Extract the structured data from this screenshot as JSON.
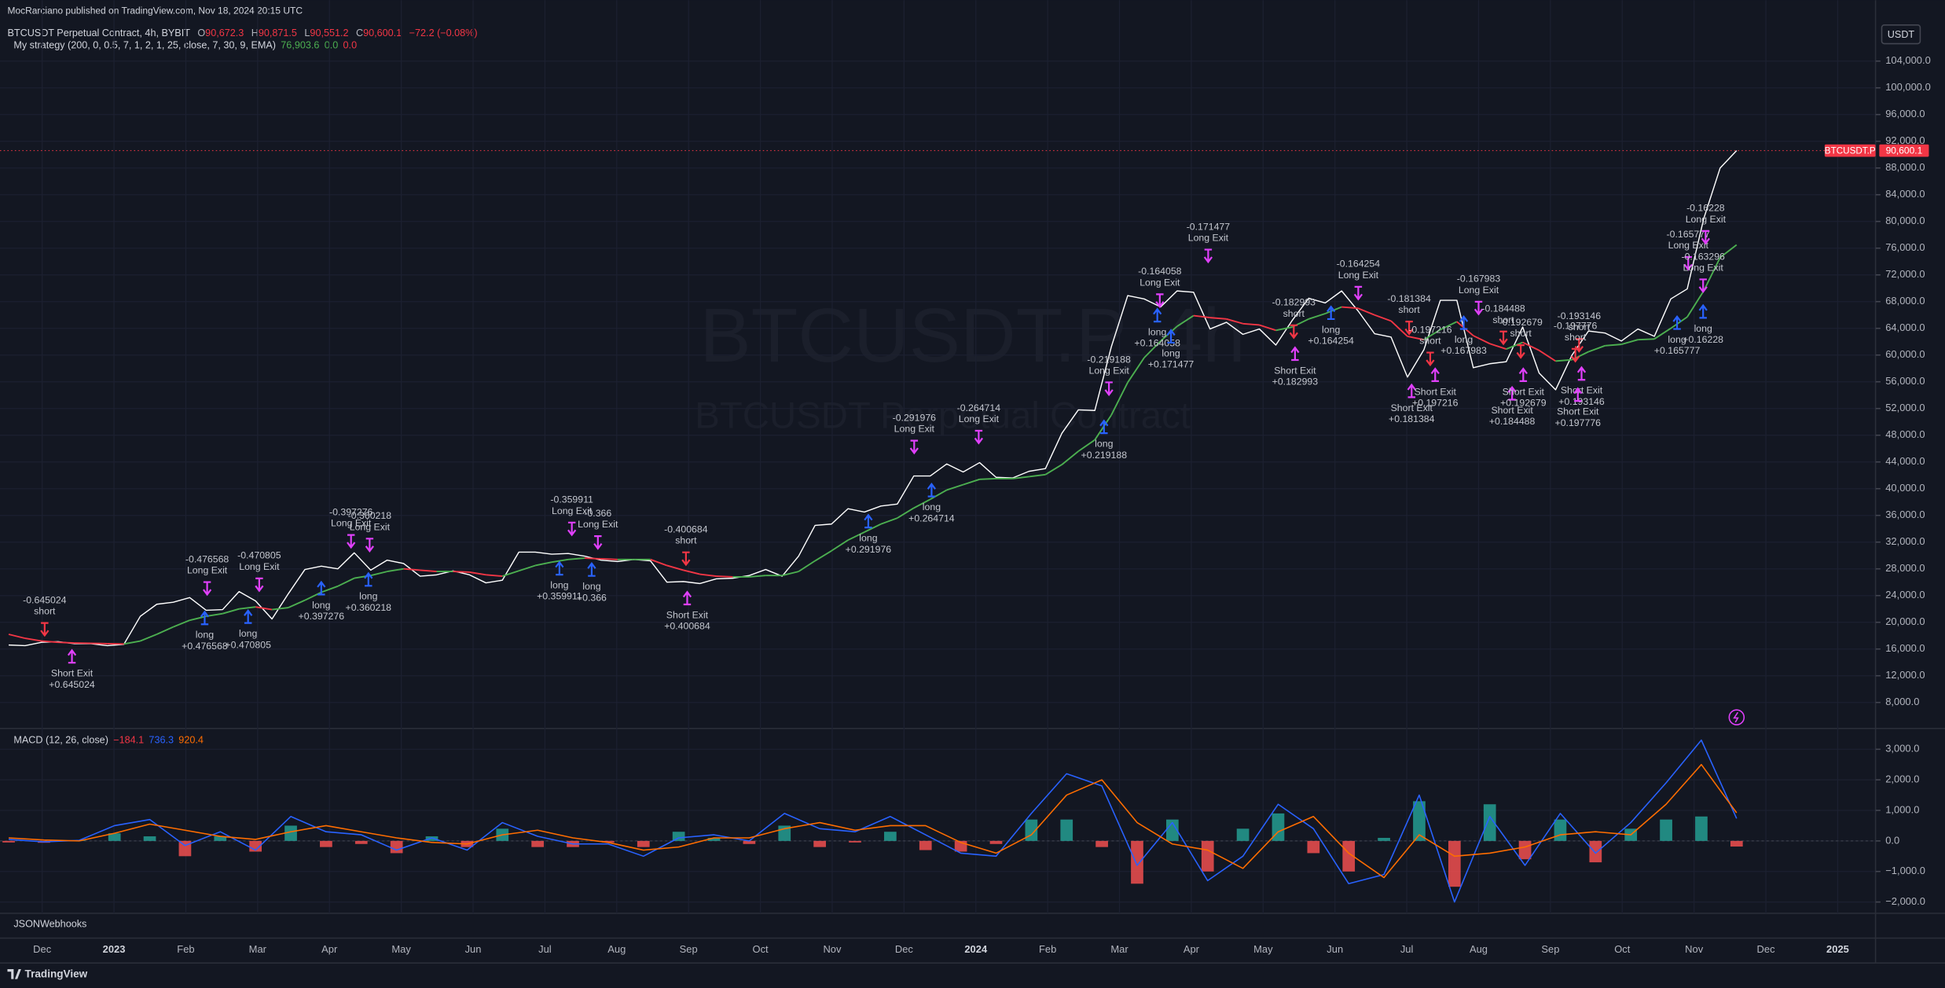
{
  "header": {
    "publisher": "MocRarciano published on TradingView.com, Nov 18, 2024 20:15 UTC",
    "symbol": "BTCUSDT Perpetual Contract, 4h, BYBIT",
    "ohlc": [
      {
        "key": "O",
        "value": "90,672.3"
      },
      {
        "key": "H",
        "value": "90,871.5"
      },
      {
        "key": "L",
        "value": "90,551.2"
      },
      {
        "key": "C",
        "value": "90,600.1"
      }
    ],
    "change": "−72.2 (−0.08%)",
    "strategy": "My strategy (200, 0, 0.5, 7, 1, 2, 1, 25, close, 7, 30, 9, EMA)",
    "strategy_values": [
      {
        "text": "76,903.6",
        "color": "#4caf50"
      },
      {
        "text": "0.0",
        "color": "#4caf50"
      },
      {
        "text": "0.0",
        "color": "#f23645"
      }
    ],
    "currency": "USDT"
  },
  "watermark": {
    "symbol": "BTCUSDT.P, 4h",
    "description": "BTCUSDT Perpetual Contract"
  },
  "time_axis": [
    "Dec",
    "2023",
    "Feb",
    "Mar",
    "Apr",
    "May",
    "Jun",
    "Jul",
    "Aug",
    "Sep",
    "Oct",
    "Nov",
    "Dec",
    "2024",
    "Feb",
    "Mar",
    "Apr",
    "May",
    "Jun",
    "Jul",
    "Aug",
    "Sep",
    "Oct",
    "Nov",
    "Dec",
    "2025"
  ],
  "chart_data": [
    {
      "type": "line",
      "ylim": [
        4290,
        110140
      ],
      "yticks": [
        {
          "value": 8000,
          "label": "8,000.0"
        },
        {
          "value": 12000,
          "label": "12,000.0"
        },
        {
          "value": 16000,
          "label": "16,000.0"
        },
        {
          "value": 20000,
          "label": "20,000.0"
        },
        {
          "value": 24000,
          "label": "24,000.0"
        },
        {
          "value": 28000,
          "label": "28,000.0"
        },
        {
          "value": 32000,
          "label": "32,000.0"
        },
        {
          "value": 36000,
          "label": "36,000.0"
        },
        {
          "value": 40000,
          "label": "40,000.0"
        },
        {
          "value": 44000,
          "label": "44,000.0"
        },
        {
          "value": 48000,
          "label": "48,000.0"
        },
        {
          "value": 52000,
          "label": "52,000.0"
        },
        {
          "value": 56000,
          "label": "56,000.0"
        },
        {
          "value": 60000,
          "label": "60,000.0"
        },
        {
          "value": 64000,
          "label": "64,000.0"
        },
        {
          "value": 68000,
          "label": "68,000.0"
        },
        {
          "value": 72000,
          "label": "72,000.0"
        },
        {
          "value": 76000,
          "label": "76,000.0"
        },
        {
          "value": 80000,
          "label": "80,000.0"
        },
        {
          "value": 84000,
          "label": "84,000.0"
        },
        {
          "value": 88000,
          "label": "88,000.0"
        },
        {
          "value": 92000,
          "label": "92,000.0"
        },
        {
          "value": 96000,
          "label": "96,000.0"
        },
        {
          "value": 100000,
          "label": "100,000.0"
        },
        {
          "value": 104000,
          "label": "104,000.0"
        }
      ],
      "grid": true,
      "series": [
        {
          "name": "BTCUSDT.P",
          "color": "#ffffff",
          "values": [
            16600,
            16500,
            17000,
            17100,
            16800,
            16800,
            16500,
            16700,
            20900,
            22700,
            23000,
            23700,
            21800,
            21900,
            24600,
            23200,
            20500,
            24300,
            27900,
            28400,
            28000,
            30400,
            27800,
            29300,
            28800,
            26900,
            27100,
            27700,
            27100,
            25900,
            26300,
            30500,
            30500,
            30200,
            30300,
            29900,
            29300,
            29100,
            29400,
            29200,
            26000,
            26100,
            25800,
            26500,
            26600,
            27000,
            27900,
            26900,
            29900,
            34500,
            34700,
            37000,
            36500,
            37400,
            37700,
            41900,
            41900,
            43700,
            42500,
            43900,
            41700,
            41600,
            42600,
            43000,
            48300,
            51800,
            51700,
            61200,
            68900,
            68400,
            67200,
            69600,
            69400,
            63900,
            64900,
            63100,
            63900,
            61500,
            65200,
            68500,
            67800,
            69600,
            66600,
            63200,
            62700,
            56700,
            60800,
            68200,
            68200,
            58100,
            58700,
            59000,
            64200,
            57300,
            54800,
            60000,
            63600,
            63300,
            62100,
            63900,
            62800,
            68400,
            69900,
            80400,
            88000,
            90600.1
          ]
        },
        {
          "up_color": "#4caf50",
          "down_color": "#f23645",
          "values": [
            18200,
            17600,
            17200,
            17000,
            16900,
            16850,
            16800,
            16750,
            17200,
            18200,
            19300,
            20300,
            20900,
            21300,
            22000,
            22300,
            21900,
            22200,
            23300,
            24500,
            25400,
            26600,
            27000,
            27600,
            28000,
            27800,
            27600,
            27600,
            27500,
            27100,
            26900,
            27700,
            28500,
            29000,
            29400,
            29600,
            29500,
            29400,
            29400,
            29400,
            28500,
            27800,
            27200,
            26900,
            26800,
            26800,
            27000,
            27000,
            27600,
            29200,
            30700,
            32300,
            33500,
            34700,
            35600,
            37100,
            38400,
            39800,
            40600,
            41400,
            41500,
            41500,
            41800,
            42100,
            43600,
            45600,
            47300,
            51000,
            55900,
            59600,
            62100,
            64300,
            65900,
            65600,
            65400,
            64700,
            64500,
            63700,
            64200,
            65400,
            66200,
            67200,
            67000,
            66000,
            65100,
            62800,
            62300,
            63800,
            65000,
            62900,
            61700,
            60900,
            61900,
            60700,
            59100,
            59300,
            60500,
            61400,
            61600,
            62300,
            62400,
            64000,
            65700,
            69600,
            74600,
            76500
          ]
        }
      ],
      "last_price": {
        "value": 90600.1,
        "label": "90,600.1",
        "color": "#f23645"
      },
      "annotations": [
        {
          "lines": [
            "-0.645024",
            "short"
          ],
          "color": "#f23645",
          "arrow": "down"
        },
        {
          "lines": [
            "Short Exit",
            "+0.645024"
          ],
          "color": "#e040fb",
          "arrow": "up"
        },
        {
          "lines": [
            "-0.476568",
            "Long Exit"
          ],
          "color": "#e040fb",
          "arrow": "down"
        },
        {
          "lines": [
            "long",
            "+0.476568"
          ],
          "color": "#2962ff",
          "arrow": "up"
        },
        {
          "lines": [
            "-0.470805",
            "Long Exit"
          ],
          "color": "#e040fb",
          "arrow": "down"
        },
        {
          "lines": [
            "long",
            "+0.470805"
          ],
          "color": "#2962ff",
          "arrow": "up"
        },
        {
          "lines": [
            "long",
            "+0.397276"
          ],
          "color": "#2962ff",
          "arrow": "up"
        },
        {
          "lines": [
            "-0.397276",
            "Long Exit"
          ],
          "color": "#e040fb",
          "arrow": "down"
        },
        {
          "lines": [
            "-0.360218",
            "Long Exit"
          ],
          "color": "#e040fb",
          "arrow": "down"
        },
        {
          "lines": [
            "long",
            "+0.360218"
          ],
          "color": "#2962ff",
          "arrow": "up"
        },
        {
          "lines": [
            "-0.359911",
            "Long Exit"
          ],
          "color": "#e040fb",
          "arrow": "down"
        },
        {
          "lines": [
            "long",
            "+0.359911"
          ],
          "color": "#2962ff",
          "arrow": "up"
        },
        {
          "lines": [
            "-0.366",
            "Long Exit"
          ],
          "color": "#e040fb",
          "arrow": "down"
        },
        {
          "lines": [
            "long",
            "+0.366"
          ],
          "color": "#2962ff",
          "arrow": "up"
        },
        {
          "lines": [
            "-0.400684",
            "short"
          ],
          "color": "#f23645",
          "arrow": "down"
        },
        {
          "lines": [
            "Short Exit",
            "+0.400684"
          ],
          "color": "#e040fb",
          "arrow": "up"
        },
        {
          "lines": [
            "long",
            "+0.291976"
          ],
          "color": "#2962ff",
          "arrow": "up"
        },
        {
          "lines": [
            "-0.291976",
            "Long Exit"
          ],
          "color": "#e040fb",
          "arrow": "down"
        },
        {
          "lines": [
            "long",
            "+0.264714"
          ],
          "color": "#2962ff",
          "arrow": "up"
        },
        {
          "lines": [
            "-0.264714",
            "Long Exit"
          ],
          "color": "#e040fb",
          "arrow": "down"
        },
        {
          "lines": [
            "long",
            "+0.219188"
          ],
          "color": "#2962ff",
          "arrow": "up"
        },
        {
          "lines": [
            "-0.219188",
            "Long Exit"
          ],
          "color": "#e040fb",
          "arrow": "down"
        },
        {
          "lines": [
            "-0.164058",
            "Long Exit"
          ],
          "color": "#e040fb",
          "arrow": "down"
        },
        {
          "lines": [
            "long",
            "+0.164058"
          ],
          "color": "#2962ff",
          "arrow": "up"
        },
        {
          "lines": [
            "-0.171477",
            "Long Exit"
          ],
          "color": "#e040fb",
          "arrow": "down"
        },
        {
          "lines": [
            "long",
            "+0.171477"
          ],
          "color": "#2962ff",
          "arrow": "up"
        },
        {
          "lines": [
            "-0.182993",
            "short"
          ],
          "color": "#f23645",
          "arrow": "down"
        },
        {
          "lines": [
            "Short Exit",
            "+0.182993"
          ],
          "color": "#e040fb",
          "arrow": "up"
        },
        {
          "lines": [
            "-0.164254",
            "Long Exit"
          ],
          "color": "#e040fb",
          "arrow": "down"
        },
        {
          "lines": [
            "long",
            "+0.164254"
          ],
          "color": "#2962ff",
          "arrow": "up"
        },
        {
          "lines": [
            "-0.181384",
            "short"
          ],
          "color": "#f23645",
          "arrow": "down"
        },
        {
          "lines": [
            "Short Exit",
            "+0.181384"
          ],
          "color": "#e040fb",
          "arrow": "up"
        },
        {
          "lines": [
            "-0.197216",
            "short"
          ],
          "color": "#f23645",
          "arrow": "down"
        },
        {
          "lines": [
            "Short Exit",
            "+0.197216"
          ],
          "color": "#e040fb",
          "arrow": "up"
        },
        {
          "lines": [
            "-0.167983",
            "Long Exit"
          ],
          "color": "#e040fb",
          "arrow": "down"
        },
        {
          "lines": [
            "long",
            "+0.167983"
          ],
          "color": "#2962ff",
          "arrow": "up"
        },
        {
          "lines": [
            "-0.184488",
            "short"
          ],
          "color": "#f23645",
          "arrow": "down"
        },
        {
          "lines": [
            "Short Exit",
            "+0.184488"
          ],
          "color": "#e040fb",
          "arrow": "up"
        },
        {
          "lines": [
            "-0.192679",
            "short"
          ],
          "color": "#f23645",
          "arrow": "down"
        },
        {
          "lines": [
            "Short Exit",
            "+0.192679"
          ],
          "color": "#e040fb",
          "arrow": "up"
        },
        {
          "lines": [
            "-0.193146",
            "short"
          ],
          "color": "#f23645",
          "arrow": "down"
        },
        {
          "lines": [
            "Short Exit",
            "+0.193146"
          ],
          "color": "#e040fb",
          "arrow": "up"
        },
        {
          "lines": [
            "-0.197776",
            "short"
          ],
          "color": "#f23645",
          "arrow": "down"
        },
        {
          "lines": [
            "Short Exit",
            "+0.197776"
          ],
          "color": "#e040fb",
          "arrow": "up"
        },
        {
          "lines": [
            "-0.165777",
            "Long Exit"
          ],
          "color": "#e040fb",
          "arrow": "down"
        },
        {
          "lines": [
            "long",
            "+0.165777"
          ],
          "color": "#2962ff",
          "arrow": "up"
        },
        {
          "lines": [
            "-0.16228",
            "Long Exit"
          ],
          "color": "#e040fb",
          "arrow": "down"
        },
        {
          "lines": [
            "long",
            "+0.16228"
          ],
          "color": "#2962ff",
          "arrow": "up"
        },
        {
          "lines": [
            "-0.163296",
            "Long Exit"
          ],
          "color": "#e040fb",
          "arrow": "down"
        }
      ]
    },
    {
      "type": "macd",
      "title": "MACD (12, 26, close)",
      "legend_values": [
        {
          "text": "−184.1",
          "color": "#f23645"
        },
        {
          "text": "736.3",
          "color": "#2962ff"
        },
        {
          "text": "920.4",
          "color": "#ff6d00"
        }
      ],
      "ylim": [
        -2330,
        3640
      ],
      "yticks": [
        {
          "value": -2000,
          "label": "−2,000.0"
        },
        {
          "value": -1000,
          "label": "−1,000.0"
        },
        {
          "value": 0,
          "label": "0.0"
        },
        {
          "value": 1000,
          "label": "1,000.0"
        },
        {
          "value": 2000,
          "label": "2,000.0"
        },
        {
          "value": 3000,
          "label": "3,000.0"
        }
      ],
      "series": [
        {
          "style": "histogram",
          "up_color": "#26a69a",
          "down_color": "#ff5252",
          "values": [
            -50,
            -60,
            20,
            250,
            150,
            -500,
            150,
            -350,
            500,
            -200,
            -100,
            -400,
            150,
            -200,
            400,
            -200,
            -200,
            -50,
            -200,
            300,
            100,
            -100,
            500,
            -200,
            -50,
            300,
            -300,
            -350,
            -100,
            700,
            700,
            -200,
            -1400,
            700,
            -1000,
            400,
            900,
            -400,
            -1000,
            100,
            1300,
            -1500,
            1200,
            -600,
            700,
            -700,
            400,
            700,
            800,
            -184.1
          ]
        },
        {
          "style": "line",
          "color": "#2962ff",
          "values": [
            50,
            -30,
            20,
            500,
            700,
            -150,
            300,
            -300,
            800,
            300,
            200,
            -300,
            100,
            -300,
            600,
            150,
            -100,
            -100,
            -500,
            100,
            200,
            0,
            900,
            400,
            300,
            800,
            200,
            -400,
            -500,
            900,
            2200,
            1800,
            -800,
            600,
            -1300,
            -500,
            1200,
            400,
            -1400,
            -1100,
            1500,
            -2000,
            800,
            -800,
            900,
            -400,
            600,
            1900,
            3300,
            736.3
          ]
        },
        {
          "style": "line",
          "color": "#ff6d00",
          "values": [
            100,
            30,
            0,
            250,
            550,
            350,
            150,
            50,
            300,
            500,
            300,
            100,
            -50,
            -100,
            200,
            350,
            100,
            -50,
            -300,
            -200,
            100,
            100,
            400,
            600,
            350,
            500,
            500,
            -50,
            -400,
            200,
            1500,
            2000,
            600,
            -100,
            -300,
            -900,
            300,
            800,
            -400,
            -1200,
            200,
            -500,
            -400,
            -200,
            200,
            300,
            200,
            1200,
            2500,
            920.4
          ]
        }
      ]
    }
  ],
  "footer": {
    "indicator": "JSONWebhooks",
    "brand": "TradingView"
  }
}
